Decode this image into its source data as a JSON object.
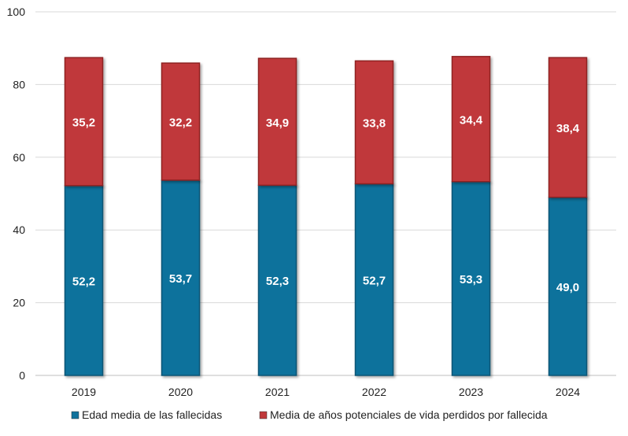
{
  "chart_data": {
    "type": "bar",
    "stacked": true,
    "categories": [
      "2019",
      "2020",
      "2021",
      "2022",
      "2023",
      "2024"
    ],
    "series": [
      {
        "name": "Edad media de las fallecidas",
        "values": [
          52.2,
          53.7,
          52.3,
          52.7,
          53.3,
          49.0
        ],
        "labels": [
          "52,2",
          "53,7",
          "52,3",
          "52,7",
          "53,3",
          "49,0"
        ],
        "color": "#11729c"
      },
      {
        "name": "Media de años potenciales de vida perdidos por fallecida",
        "values": [
          35.2,
          32.2,
          34.9,
          33.8,
          34.4,
          38.4
        ],
        "labels": [
          "35,2",
          "32,2",
          "34,9",
          "33,8",
          "34,4",
          "38,4"
        ],
        "color": "#c0393b"
      }
    ],
    "ylim": [
      0,
      100
    ],
    "yticks": [
      0,
      20,
      40,
      60,
      80,
      100
    ],
    "ytick_labels": [
      "0",
      "20",
      "40",
      "60",
      "80",
      "100"
    ],
    "grid": true,
    "legend": "bottom",
    "title": "",
    "xlabel": "",
    "ylabel": ""
  }
}
